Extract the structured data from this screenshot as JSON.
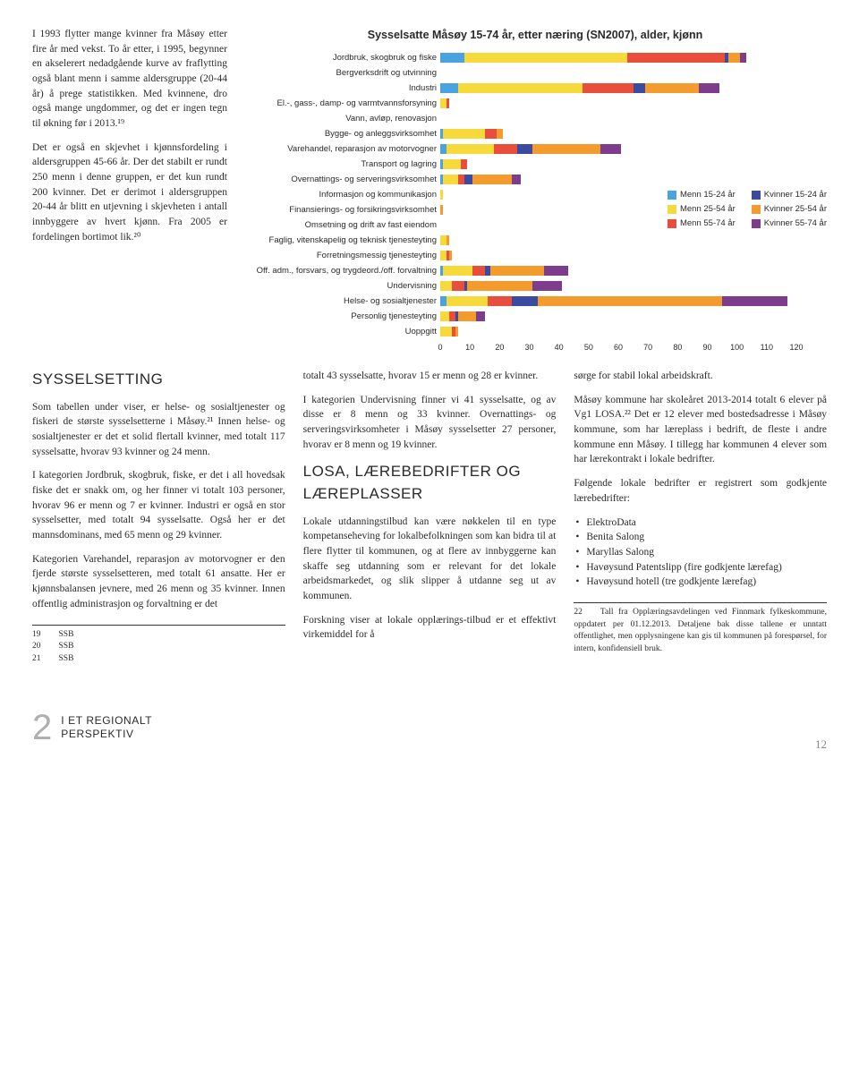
{
  "leftParas": [
    "I 1993 flytter mange kvinner fra Måsøy etter fire år med vekst. To år etter, i 1995, begynner en akselerert nedadgående kurve av fraflytting også blant menn i samme aldersgruppe (20-44 år) å prege statistikken. Med kvinnene, dro også mange ungdommer, og det er ingen tegn til økning før i 2013.¹⁹",
    "Det er også en skjevhet i kjønnsfordeling i aldersgruppen 45-66 år. Der det stabilt er rundt 250 menn i denne gruppen, er det kun rundt 200 kvinner. Det er derimot i aldersgruppen 20-44 år blitt en utjevning i skjevheten i antall innbyggere av hvert kjønn. Fra 2005 er fordelingen bortimot lik.²⁰"
  ],
  "chart": {
    "title": "Sysselsatte Måsøy 15-74 år, etter næring (SN2007), alder, kjønn",
    "xmax": 120,
    "xticks": [
      0,
      10,
      20,
      30,
      40,
      50,
      60,
      70,
      80,
      90,
      100,
      110,
      120
    ],
    "categories": [
      "Jordbruk, skogbruk og fiske",
      "Bergverksdrift og utvinning",
      "Industri",
      "El.-, gass-, damp- og varmtvannsforsyning",
      "Vann, avløp, renovasjon",
      "Bygge- og anleggsvirksomhet",
      "Varehandel, reparasjon av motorvogner",
      "Transport og lagring",
      "Overnattings- og serveringsvirksomhet",
      "Informasjon og kommunikasjon",
      "Finansierings- og forsikringsvirksomhet",
      "Omsetning og drift av fast eiendom",
      "Faglig, vitenskapelig og teknisk tjenesteyting",
      "Forretningsmessig tjenesteyting",
      "Off. adm., forsvars, og trygdeord./off. forvaltning",
      "Undervisning",
      "Helse- og sosialtjenester",
      "Personlig tjenesteyting",
      "Uoppgitt"
    ],
    "series_colors": [
      "#4aa3df",
      "#f6d93b",
      "#e94e3c",
      "#3a4ba0",
      "#f39c2d",
      "#7d3c8c"
    ],
    "legend": [
      {
        "label": "Menn 15-24 år",
        "color": "#4aa3df"
      },
      {
        "label": "Menn 25-54 år",
        "color": "#f6d93b"
      },
      {
        "label": "Menn 55-74 år",
        "color": "#e94e3c"
      },
      {
        "label": "Kvinner 15-24 år",
        "color": "#3a4ba0"
      },
      {
        "label": "Kvinner 25-54 år",
        "color": "#f39c2d"
      },
      {
        "label": "Kvinner 55-74 år",
        "color": "#7d3c8c"
      }
    ],
    "data": [
      [
        8,
        55,
        33,
        1,
        4,
        2
      ],
      [
        0,
        0,
        0,
        0,
        0,
        0
      ],
      [
        6,
        42,
        17,
        4,
        18,
        7
      ],
      [
        0,
        2,
        1,
        0,
        0,
        0
      ],
      [
        0,
        0,
        0,
        0,
        0,
        0
      ],
      [
        1,
        14,
        4,
        0,
        2,
        0
      ],
      [
        2,
        16,
        8,
        5,
        23,
        7
      ],
      [
        1,
        6,
        2,
        0,
        0,
        0
      ],
      [
        1,
        5,
        2,
        3,
        13,
        3
      ],
      [
        0,
        1,
        0,
        0,
        0,
        0
      ],
      [
        0,
        0,
        0,
        0,
        1,
        0
      ],
      [
        0,
        0,
        0,
        0,
        0,
        0
      ],
      [
        0,
        2,
        0,
        0,
        1,
        0
      ],
      [
        0,
        2,
        1,
        0,
        1,
        0
      ],
      [
        1,
        10,
        4,
        2,
        18,
        8
      ],
      [
        0,
        4,
        4,
        1,
        22,
        10
      ],
      [
        2,
        14,
        8,
        9,
        62,
        22
      ],
      [
        0,
        3,
        2,
        1,
        6,
        3
      ],
      [
        0,
        4,
        1,
        0,
        1,
        0
      ]
    ]
  },
  "col1": {
    "heading": "SYSSELSETTING",
    "paras": [
      "Som tabellen under viser, er helse- og sosialtjenester og fiskeri de største sysselsetterne i Måsøy.²¹ Innen helse- og sosialtjenester er det et solid flertall kvinner, med totalt 117 sysselsatte, hvorav 93 kvinner og 24 menn.",
      "I kategorien Jordbruk, skogbruk, fiske, er det i all hovedsak fiske det er snakk om, og her finner vi totalt 103 personer, hvorav 96 er menn og 7 er kvinner. Industri er også en stor sysselsetter, med totalt 94 sysselsatte. Også her er det mannsdominans, med 65 menn og 29 kvinner.",
      "Kategorien Varehandel, reparasjon av motorvogner er den fjerde største sysselsetteren, med totalt 61 ansatte. Her er kjønnsbalansen jevnere, med 26 menn og 35 kvinner. Innen offentlig administrasjon og forvaltning er det"
    ],
    "footnotes": [
      {
        "num": "19",
        "txt": "SSB"
      },
      {
        "num": "20",
        "txt": "SSB"
      },
      {
        "num": "21",
        "txt": "SSB"
      }
    ]
  },
  "col2": {
    "paras1": [
      "totalt 43 sysselsatte, hvorav 15 er menn og 28 er kvinner.",
      "I kategorien Undervisning finner vi 41 sysselsatte, og av disse er 8 menn og 33 kvinner. Overnattings- og serveringsvirksomheter i Måsøy sysselsetter 27 personer, hvorav er 8 menn og 19 kvinner."
    ],
    "heading": "LOSA, LÆREBEDRIFTER OG LÆREPLASSER",
    "paras2": [
      "Lokale utdanningstilbud kan være nøkkelen til en type kompetanseheving for lokalbefolkningen som kan bidra til at flere flytter til kommunen, og at flere av innbyggerne kan skaffe seg utdanning som er relevant for det lokale arbeidsmarkedet, og slik slipper å utdanne seg ut av kommunen.",
      "Forskning viser at lokale opplærings-tilbud er et effektivt virkemiddel for å"
    ]
  },
  "col3": {
    "paras1": [
      "sørge for stabil lokal arbeidskraft.",
      "Måsøy kommune har skoleåret 2013-2014 totalt 6 elever på Vg1 LOSA.²² Det er 12 elever med bostedsadresse i Måsøy kommune, som har læreplass i bedrift, de fleste i andre kommune enn Måsøy. I tillegg har kommunen 4 elever som har lærekontrakt i lokale bedrifter.",
      "Følgende lokale bedrifter er registrert som godkjente lærebedrifter:"
    ],
    "bullets": [
      "ElektroData",
      "Benita Salong",
      "Maryllas Salong",
      "Havøysund Patentslipp (fire godkjente lærefag)",
      "Havøysund hotell (tre godkjente lærefag)"
    ],
    "footnote": {
      "num": "22",
      "txt": "Tall fra Opplæringsavdelingen ved Finnmark fylkeskommune, oppdatert per 01.12.2013. Detaljene bak disse tallene er unntatt offentlighet, men opplysningene kan gis til kommunen på forespørsel, for intern, konfidensiell bruk."
    }
  },
  "footer": {
    "chapterNum": "2",
    "chapterLine1": "I ET REGIONALT",
    "chapterLine2": "PERSPEKTIV",
    "pageNum": "12"
  }
}
